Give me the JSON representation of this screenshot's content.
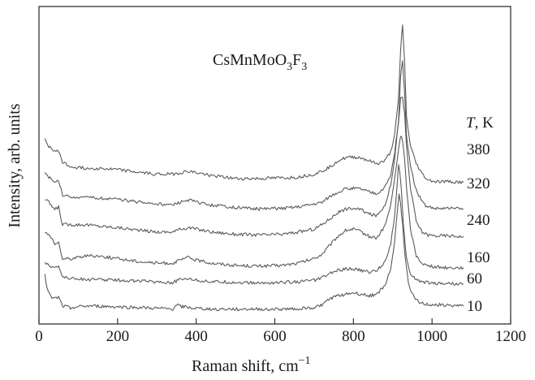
{
  "chart_data": {
    "type": "line",
    "title_main": "CsMnMoO",
    "title_sub1": "3",
    "title_mid": "F",
    "title_sub2": "3",
    "xlabel": "Raman shift, cm",
    "xlabel_sup": "−1",
    "ylabel": "Intensity, arb. units",
    "xlim": [
      0,
      1200
    ],
    "x_ticks": [
      0,
      200,
      400,
      600,
      800,
      1000,
      1200
    ],
    "y_ticks_shown": false,
    "grid": false,
    "legend_title_italic": "T",
    "legend_title_rest": ", K",
    "line_color": "#5a5a5a",
    "series": [
      {
        "name": "380",
        "x": [
          15,
          25,
          40,
          50,
          60,
          80,
          120,
          150,
          200,
          260,
          300,
          340,
          360,
          380,
          400,
          440,
          500,
          560,
          620,
          660,
          700,
          720,
          740,
          760,
          780,
          800,
          820,
          840,
          860,
          880,
          895,
          905,
          915,
          920,
          925,
          930,
          935,
          945,
          960,
          975,
          990,
          1010,
          1040,
          1080
        ],
        "y": [
          1.02,
          0.98,
          0.94,
          0.95,
          0.87,
          0.84,
          0.83,
          0.83,
          0.82,
          0.8,
          0.79,
          0.79,
          0.8,
          0.81,
          0.8,
          0.78,
          0.76,
          0.76,
          0.765,
          0.77,
          0.79,
          0.81,
          0.84,
          0.88,
          0.9,
          0.905,
          0.9,
          0.88,
          0.86,
          0.88,
          0.94,
          1.06,
          1.3,
          1.62,
          1.8,
          1.55,
          1.18,
          0.98,
          0.86,
          0.79,
          0.75,
          0.74,
          0.74,
          0.735
        ]
      },
      {
        "name": "320",
        "x": [
          15,
          25,
          40,
          50,
          60,
          80,
          120,
          150,
          200,
          260,
          300,
          340,
          360,
          380,
          400,
          440,
          500,
          560,
          620,
          660,
          700,
          720,
          740,
          760,
          780,
          800,
          820,
          840,
          860,
          880,
          895,
          905,
          915,
          920,
          925,
          930,
          935,
          945,
          960,
          975,
          990,
          1010,
          1040,
          1080
        ],
        "y": [
          0.8,
          0.77,
          0.73,
          0.75,
          0.65,
          0.64,
          0.63,
          0.63,
          0.62,
          0.6,
          0.59,
          0.58,
          0.6,
          0.615,
          0.6,
          0.58,
          0.565,
          0.555,
          0.56,
          0.57,
          0.59,
          0.6,
          0.64,
          0.67,
          0.69,
          0.695,
          0.69,
          0.67,
          0.66,
          0.7,
          0.78,
          0.94,
          1.15,
          1.45,
          1.55,
          1.35,
          1.05,
          0.84,
          0.68,
          0.6,
          0.565,
          0.56,
          0.56,
          0.555
        ]
      },
      {
        "name": "240",
        "x": [
          15,
          25,
          40,
          50,
          60,
          80,
          120,
          150,
          200,
          260,
          300,
          340,
          360,
          380,
          400,
          440,
          500,
          560,
          620,
          660,
          700,
          720,
          740,
          760,
          780,
          800,
          820,
          840,
          860,
          880,
          895,
          905,
          915,
          920,
          925,
          930,
          935,
          945,
          960,
          975,
          990,
          1010,
          1040,
          1080
        ],
        "y": [
          0.62,
          0.6,
          0.55,
          0.57,
          0.45,
          0.45,
          0.45,
          0.44,
          0.43,
          0.41,
          0.4,
          0.4,
          0.42,
          0.43,
          0.42,
          0.4,
          0.385,
          0.38,
          0.385,
          0.4,
          0.42,
          0.45,
          0.49,
          0.53,
          0.555,
          0.56,
          0.55,
          0.52,
          0.51,
          0.58,
          0.72,
          0.9,
          1.15,
          1.3,
          1.3,
          1.2,
          0.98,
          0.7,
          0.47,
          0.4,
          0.38,
          0.375,
          0.375,
          0.37
        ]
      },
      {
        "name": "160",
        "x": [
          15,
          25,
          40,
          50,
          60,
          80,
          120,
          150,
          200,
          260,
          300,
          340,
          360,
          380,
          400,
          440,
          500,
          560,
          620,
          660,
          700,
          720,
          740,
          760,
          780,
          800,
          820,
          840,
          860,
          880,
          895,
          905,
          915,
          920,
          925,
          930,
          935,
          945,
          960,
          975,
          990,
          1010,
          1040,
          1080
        ],
        "y": [
          0.4,
          0.38,
          0.32,
          0.33,
          0.22,
          0.22,
          0.24,
          0.24,
          0.22,
          0.2,
          0.19,
          0.19,
          0.21,
          0.23,
          0.21,
          0.19,
          0.175,
          0.17,
          0.175,
          0.19,
          0.22,
          0.25,
          0.31,
          0.37,
          0.41,
          0.42,
          0.4,
          0.37,
          0.36,
          0.44,
          0.58,
          0.76,
          0.96,
          1.05,
          1.02,
          0.9,
          0.7,
          0.42,
          0.24,
          0.19,
          0.17,
          0.165,
          0.16,
          0.16
        ]
      },
      {
        "name": "60",
        "x": [
          15,
          25,
          40,
          50,
          60,
          80,
          120,
          150,
          200,
          260,
          300,
          340,
          360,
          380,
          400,
          440,
          500,
          560,
          620,
          660,
          700,
          720,
          740,
          760,
          780,
          800,
          820,
          840,
          860,
          880,
          895,
          905,
          912,
          915,
          918,
          922,
          927,
          935,
          945,
          960,
          975,
          990,
          1010,
          1040,
          1080
        ],
        "y": [
          0.2,
          0.18,
          0.15,
          0.17,
          0.1,
          0.09,
          0.08,
          0.08,
          0.075,
          0.07,
          0.065,
          0.06,
          0.08,
          0.09,
          0.075,
          0.065,
          0.06,
          0.055,
          0.06,
          0.065,
          0.075,
          0.09,
          0.12,
          0.14,
          0.15,
          0.15,
          0.14,
          0.13,
          0.14,
          0.2,
          0.32,
          0.52,
          0.75,
          0.85,
          0.8,
          0.68,
          0.45,
          0.22,
          0.12,
          0.08,
          0.065,
          0.06,
          0.055,
          0.055,
          0.05
        ]
      },
      {
        "name": "10",
        "x": [
          15,
          20,
          30,
          40,
          50,
          60,
          80,
          120,
          150,
          200,
          260,
          300,
          340,
          350,
          360,
          380,
          400,
          440,
          500,
          560,
          620,
          660,
          700,
          720,
          740,
          760,
          780,
          800,
          820,
          840,
          860,
          880,
          895,
          905,
          912,
          916,
          920,
          925,
          932,
          940,
          955,
          970,
          990,
          1010,
          1040,
          1080
        ],
        "y": [
          0.12,
          0.02,
          -0.04,
          -0.05,
          -0.04,
          -0.1,
          -0.11,
          -0.1,
          -0.1,
          -0.105,
          -0.11,
          -0.115,
          -0.12,
          -0.09,
          -0.1,
          -0.11,
          -0.115,
          -0.12,
          -0.12,
          -0.12,
          -0.12,
          -0.115,
          -0.11,
          -0.09,
          -0.05,
          -0.03,
          -0.02,
          -0.01,
          -0.02,
          -0.03,
          -0.02,
          0.04,
          0.15,
          0.34,
          0.55,
          0.65,
          0.6,
          0.45,
          0.22,
          0.05,
          -0.05,
          -0.08,
          -0.09,
          -0.09,
          -0.095,
          -0.1
        ]
      }
    ]
  }
}
